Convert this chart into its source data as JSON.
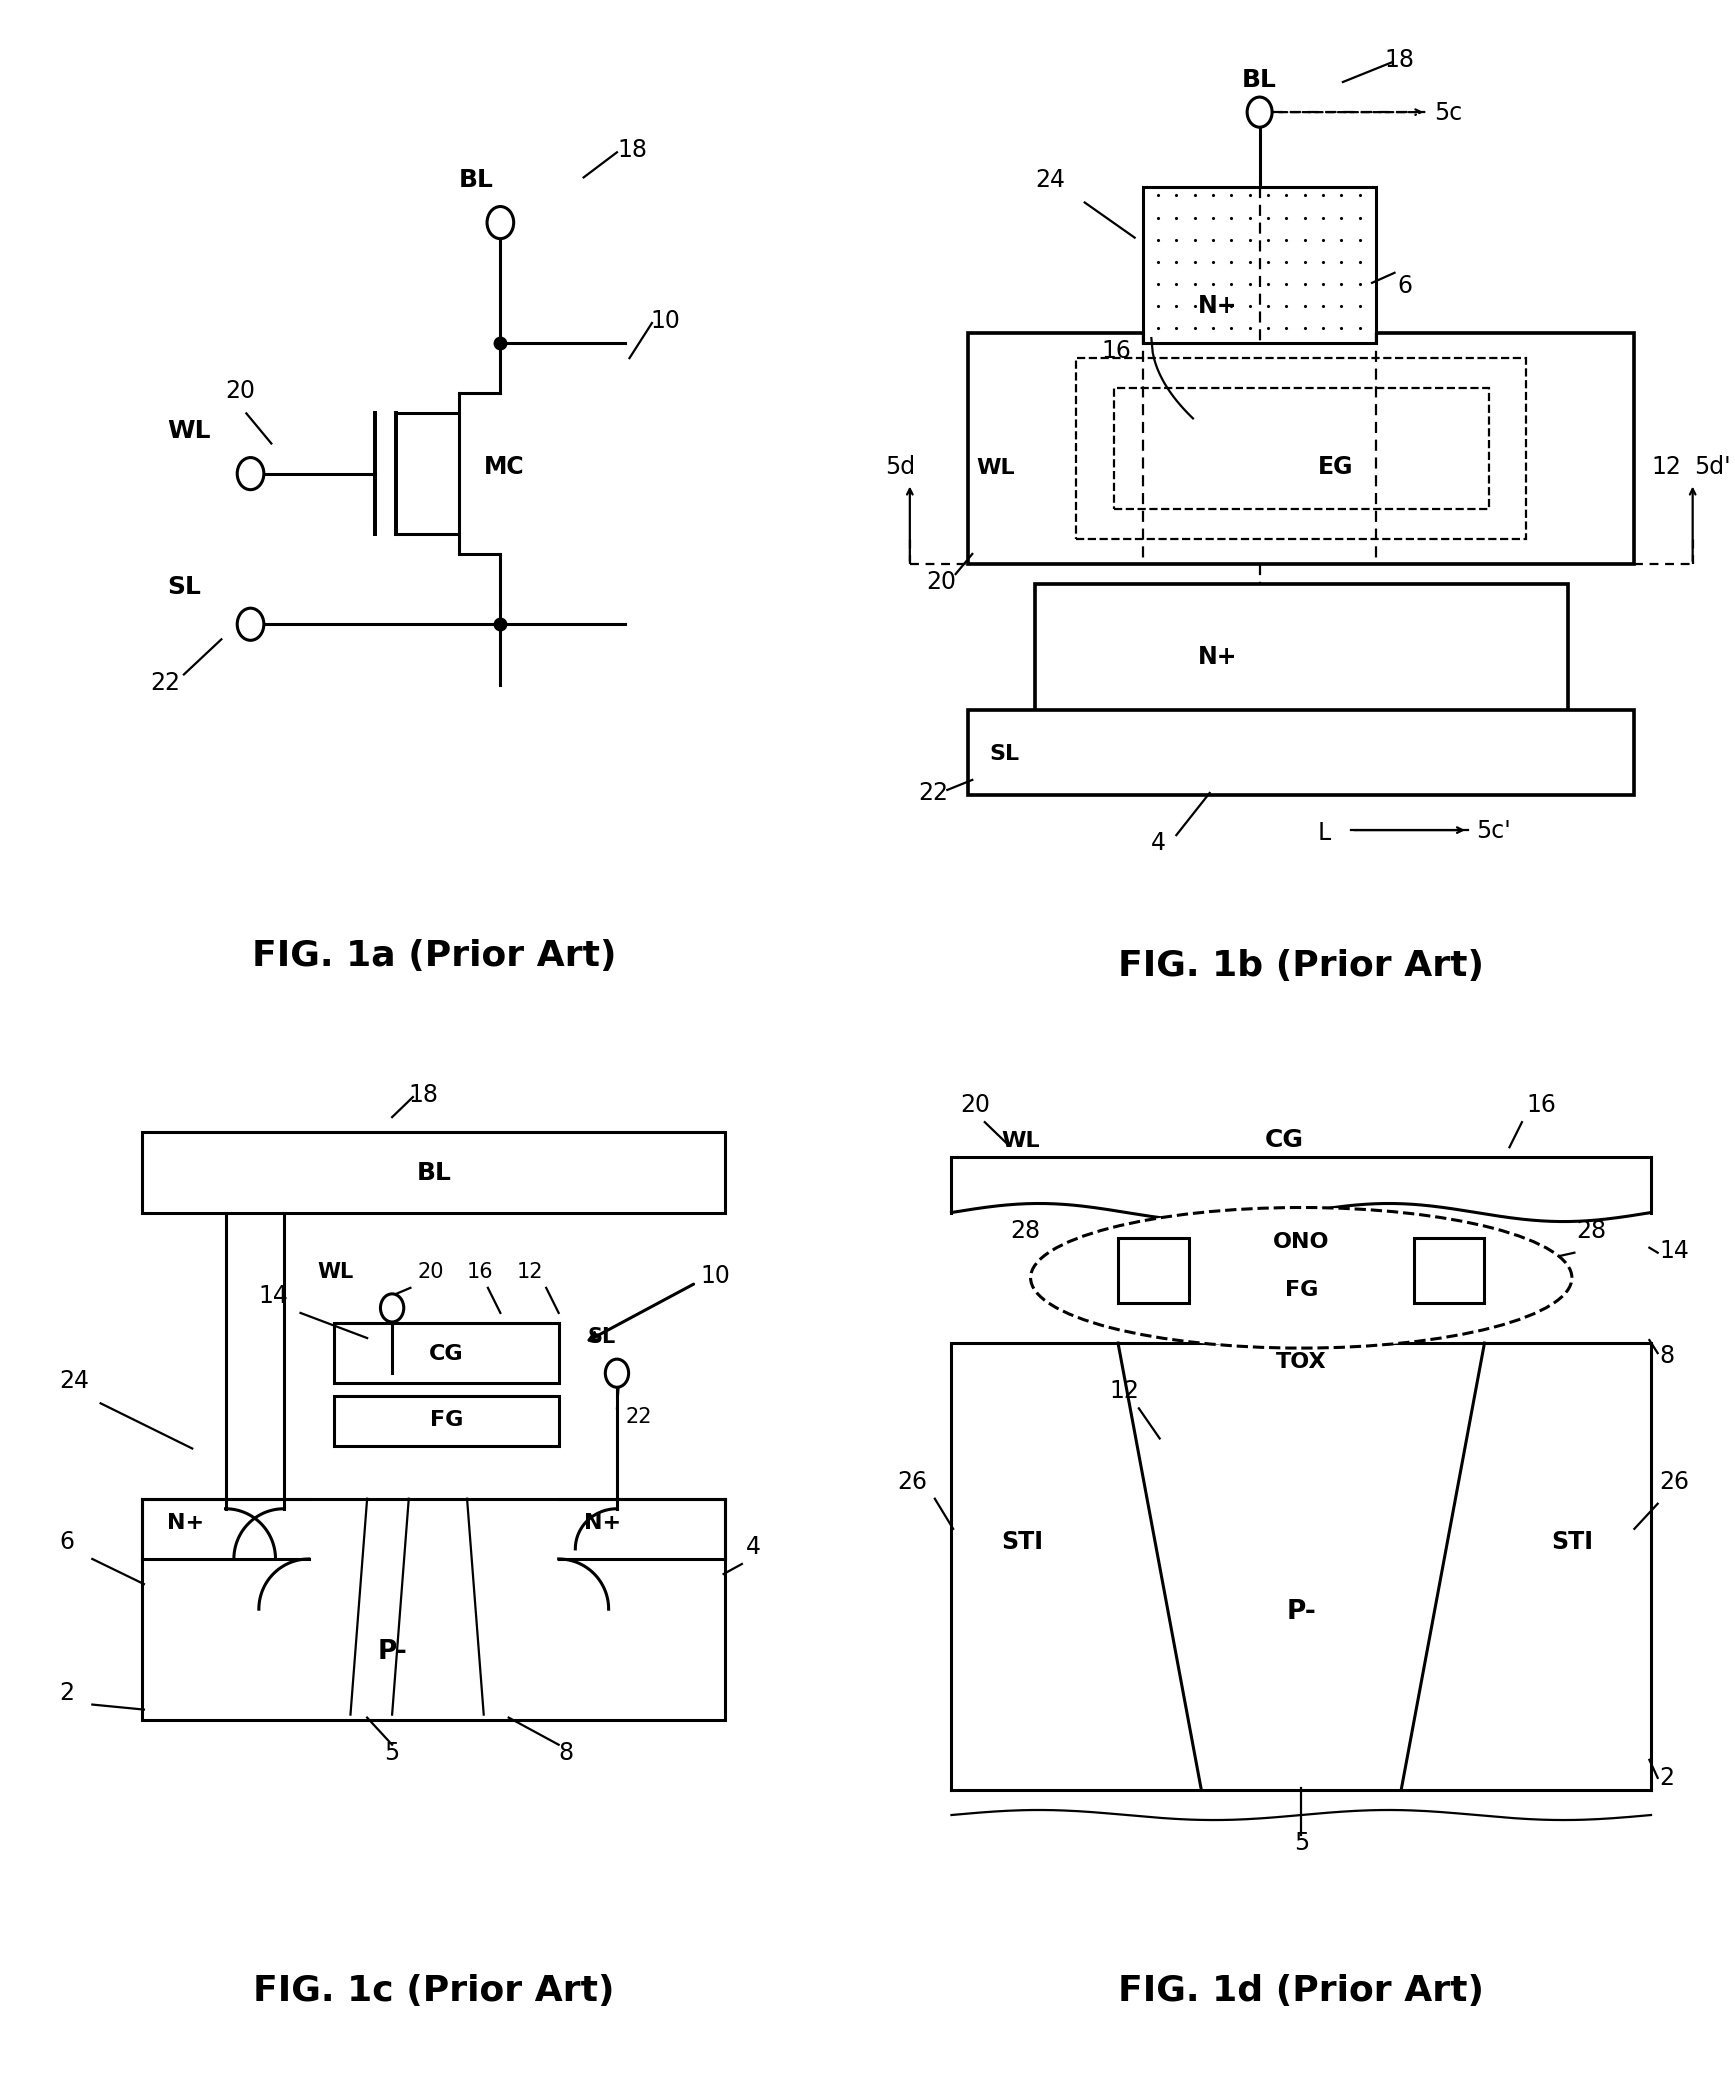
{
  "background_color": "#ffffff",
  "fig_width": 17.35,
  "fig_height": 20.92,
  "caption_fontsize": 26,
  "label_fontsize": 18,
  "number_fontsize": 17,
  "captions": [
    "FIG. 1a (Prior Art)",
    "FIG. 1b (Prior Art)",
    "FIG. 1c (Prior Art)",
    "FIG. 1d (Prior Art)"
  ]
}
